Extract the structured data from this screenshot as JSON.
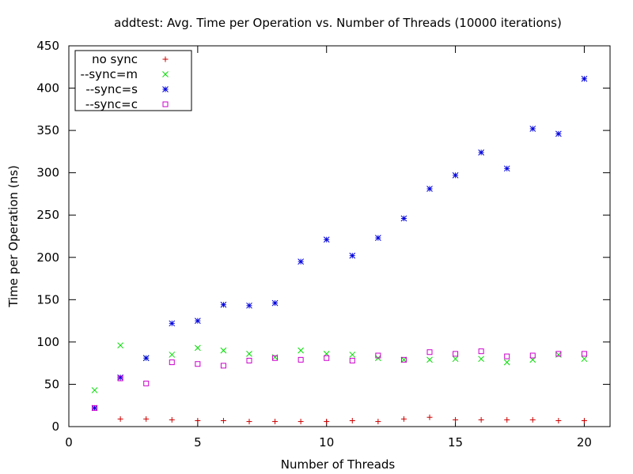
{
  "chart_data": {
    "type": "scatter",
    "title": "addtest: Avg. Time per Operation vs. Number of Threads (10000 iterations)",
    "xlabel": "Number of Threads",
    "ylabel": "Time per Operation (ns)",
    "xlim": [
      0,
      21
    ],
    "ylim": [
      0,
      450
    ],
    "xticks": [
      0,
      5,
      10,
      15,
      20
    ],
    "yticks": [
      0,
      50,
      100,
      150,
      200,
      250,
      300,
      350,
      400,
      450
    ],
    "grid": false,
    "legend_position": "top-left",
    "x": [
      1,
      2,
      3,
      4,
      5,
      6,
      7,
      8,
      9,
      10,
      11,
      12,
      13,
      14,
      15,
      16,
      17,
      18,
      19,
      20
    ],
    "series": [
      {
        "name": "no sync",
        "marker": "plus",
        "color": "#cc0000",
        "values": [
          22,
          9,
          9,
          8,
          7,
          7,
          6,
          6,
          6,
          6,
          7,
          6,
          9,
          11,
          8,
          8,
          8,
          8,
          7,
          7
        ]
      },
      {
        "name": "--sync=m",
        "marker": "cross",
        "color": "#00dd00",
        "values": [
          43,
          96,
          81,
          85,
          93,
          90,
          86,
          82,
          90,
          86,
          85,
          81,
          79,
          79,
          80,
          80,
          76,
          79,
          85,
          80
        ]
      },
      {
        "name": "--sync=s",
        "marker": "star",
        "color": "#0000dd",
        "values": [
          22,
          58,
          81,
          122,
          125,
          144,
          143,
          146,
          195,
          221,
          202,
          223,
          246,
          281,
          297,
          324,
          305,
          352,
          346,
          411
        ]
      },
      {
        "name": "--sync=c",
        "marker": "square",
        "color": "#cc00cc",
        "values": [
          22,
          57,
          51,
          76,
          74,
          72,
          78,
          81,
          79,
          81,
          78,
          84,
          79,
          88,
          86,
          89,
          83,
          84,
          86,
          86
        ]
      }
    ]
  }
}
